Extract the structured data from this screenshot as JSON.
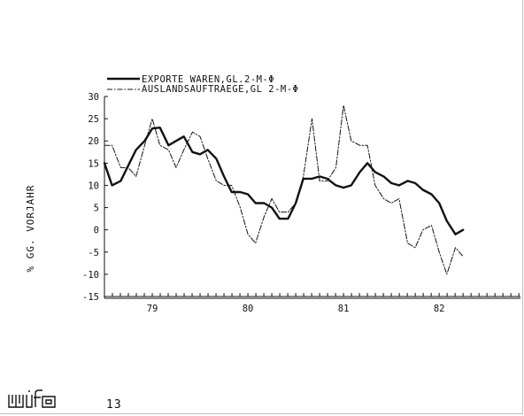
{
  "page": {
    "number": "13",
    "logo_text": "wifo"
  },
  "chart_data": {
    "type": "line",
    "ylabel": "% GG. VORJAHR",
    "xlabel": "",
    "ylim": [
      -15,
      30
    ],
    "yticks": [
      -15,
      -10,
      -5,
      0,
      5,
      10,
      15,
      20,
      25,
      30
    ],
    "xlim": [
      1978.5,
      1982.85
    ],
    "xticks": [
      {
        "label": "79",
        "value": 1979.0
      },
      {
        "label": "80",
        "value": 1980.0
      },
      {
        "label": "81",
        "value": 1981.0
      },
      {
        "label": "82",
        "value": 1982.0
      }
    ],
    "grid": false,
    "legend": "top-left",
    "series": [
      {
        "name": "EXPORTE WAREN,GL.2-M-Φ",
        "style": "solid",
        "color": "#111111",
        "x": [
          1978.5,
          1978.58,
          1978.67,
          1978.75,
          1978.83,
          1978.92,
          1979.0,
          1979.08,
          1979.17,
          1979.25,
          1979.33,
          1979.42,
          1979.5,
          1979.58,
          1979.67,
          1979.75,
          1979.83,
          1979.92,
          1980.0,
          1980.08,
          1980.17,
          1980.25,
          1980.33,
          1980.42,
          1980.5,
          1980.58,
          1980.67,
          1980.75,
          1980.83,
          1980.92,
          1981.0,
          1981.08,
          1981.17,
          1981.25,
          1981.33,
          1981.42,
          1981.5,
          1981.58,
          1981.67,
          1981.75,
          1981.83,
          1981.92,
          1982.0,
          1982.08,
          1982.17,
          1982.25
        ],
        "y": [
          15,
          10,
          11,
          14.5,
          18,
          20,
          22.8,
          23,
          19,
          20,
          21,
          17.5,
          17,
          18,
          16,
          12,
          8.5,
          8.5,
          8,
          6,
          6,
          5,
          2.5,
          2.5,
          6,
          11.5,
          11.5,
          12,
          11.5,
          10,
          9.5,
          10,
          13,
          15,
          13,
          12,
          10.5,
          10,
          11,
          10.5,
          9,
          8,
          6,
          2,
          -1,
          0
        ]
      },
      {
        "name": "AUSLANDSAUFTRAEGE,GL 2-M-Φ",
        "style": "dash-dot",
        "color": "#111111",
        "x": [
          1978.5,
          1978.58,
          1978.67,
          1978.75,
          1978.83,
          1978.92,
          1979.0,
          1979.08,
          1979.17,
          1979.25,
          1979.33,
          1979.42,
          1979.5,
          1979.58,
          1979.67,
          1979.75,
          1979.83,
          1979.92,
          1980.0,
          1980.08,
          1980.17,
          1980.25,
          1980.33,
          1980.42,
          1980.5,
          1980.58,
          1980.67,
          1980.75,
          1980.83,
          1980.92,
          1981.0,
          1981.08,
          1981.17,
          1981.25,
          1981.33,
          1981.42,
          1981.5,
          1981.58,
          1981.67,
          1981.75,
          1981.83,
          1981.92,
          1982.0,
          1982.08,
          1982.17,
          1982.25
        ],
        "y": [
          19,
          19,
          14,
          14,
          12,
          19,
          25,
          19,
          18,
          14,
          18,
          22,
          21,
          16,
          11,
          10,
          10,
          5,
          -1,
          -3,
          3,
          7,
          4,
          4,
          6,
          12,
          25,
          11,
          11,
          14,
          28,
          20,
          19,
          19,
          10,
          7,
          6,
          7,
          -3,
          -4,
          0,
          1,
          -5,
          -10,
          -4,
          -6
        ]
      }
    ]
  }
}
